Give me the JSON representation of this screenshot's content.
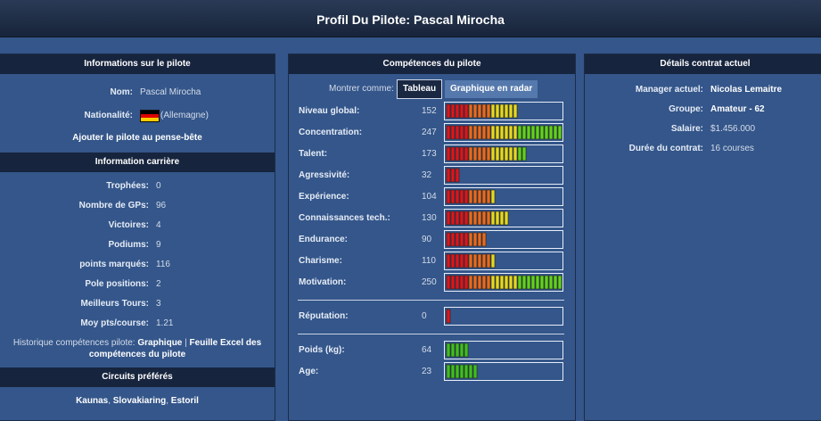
{
  "header": {
    "title": "Profil Du Pilote: Pascal Mirocha"
  },
  "pilot_info": {
    "title": "Informations sur le pilote",
    "rows": [
      {
        "label": "Nom:",
        "value": "Pascal Mirocha"
      },
      {
        "label": "Nationalité:",
        "value": "(Allemagne)"
      }
    ],
    "watchlist": "Ajouter le pilote au pense-bête"
  },
  "career": {
    "title": "Information carrière",
    "rows": [
      {
        "label": "Trophées:",
        "value": 0
      },
      {
        "label": "Nombre de GPs:",
        "value": 96
      },
      {
        "label": "Victoires:",
        "value": 4
      },
      {
        "label": "Podiums:",
        "value": 9
      },
      {
        "label": "points marqués:",
        "value": 116
      },
      {
        "label": "Pole positions:",
        "value": 2
      },
      {
        "label": "Meilleurs Tours:",
        "value": 3
      },
      {
        "label": "Moy pts/course:",
        "value": 1.21
      }
    ],
    "history": {
      "prefix": "Historique compétences pilote:",
      "link1": "Graphique",
      "separator": "|",
      "link2": "Feuille Excel des compétences du pilote"
    }
  },
  "circuits": {
    "title": "Circuits préférés",
    "items": [
      "Kaunas",
      "Slovakiaring",
      "Estoril"
    ],
    "separator": ","
  },
  "skills": {
    "title": "Compétences du pilote",
    "view_label": "Montrer comme:",
    "buttons": [
      "Tableau",
      "Graphique en radar"
    ],
    "groups": [
      [
        {
          "label": "Niveau global:",
          "value": 152
        },
        {
          "label": "Concentration:",
          "value": 247
        },
        {
          "label": "Talent:",
          "value": 173
        },
        {
          "label": "Agressivité:",
          "value": 32
        },
        {
          "label": "Expérience:",
          "value": 104
        },
        {
          "label": "Connaissances tech.:",
          "value": 130
        },
        {
          "label": "Endurance:",
          "value": 90
        },
        {
          "label": "Charisme:",
          "value": 110
        },
        {
          "label": "Motivation:",
          "value": 250
        }
      ],
      [
        {
          "label": "Réputation:",
          "value": 0
        }
      ],
      [
        {
          "label": "Poids (kg):",
          "value": 64
        },
        {
          "label": "Age:",
          "value": 23
        }
      ]
    ]
  },
  "contract": {
    "title": "Détails contrat actuel",
    "rows": [
      {
        "label": "Manager actuel:",
        "value": "Nicolas Lemaitre",
        "bold": true
      },
      {
        "label": "Groupe:",
        "value": "Amateur - 62",
        "bold": true
      },
      {
        "label": "Salaire:",
        "value": "$1.456.000",
        "bold": false
      },
      {
        "label": "Durée du contrat:",
        "value": "16 courses",
        "bold": false
      }
    ]
  }
}
